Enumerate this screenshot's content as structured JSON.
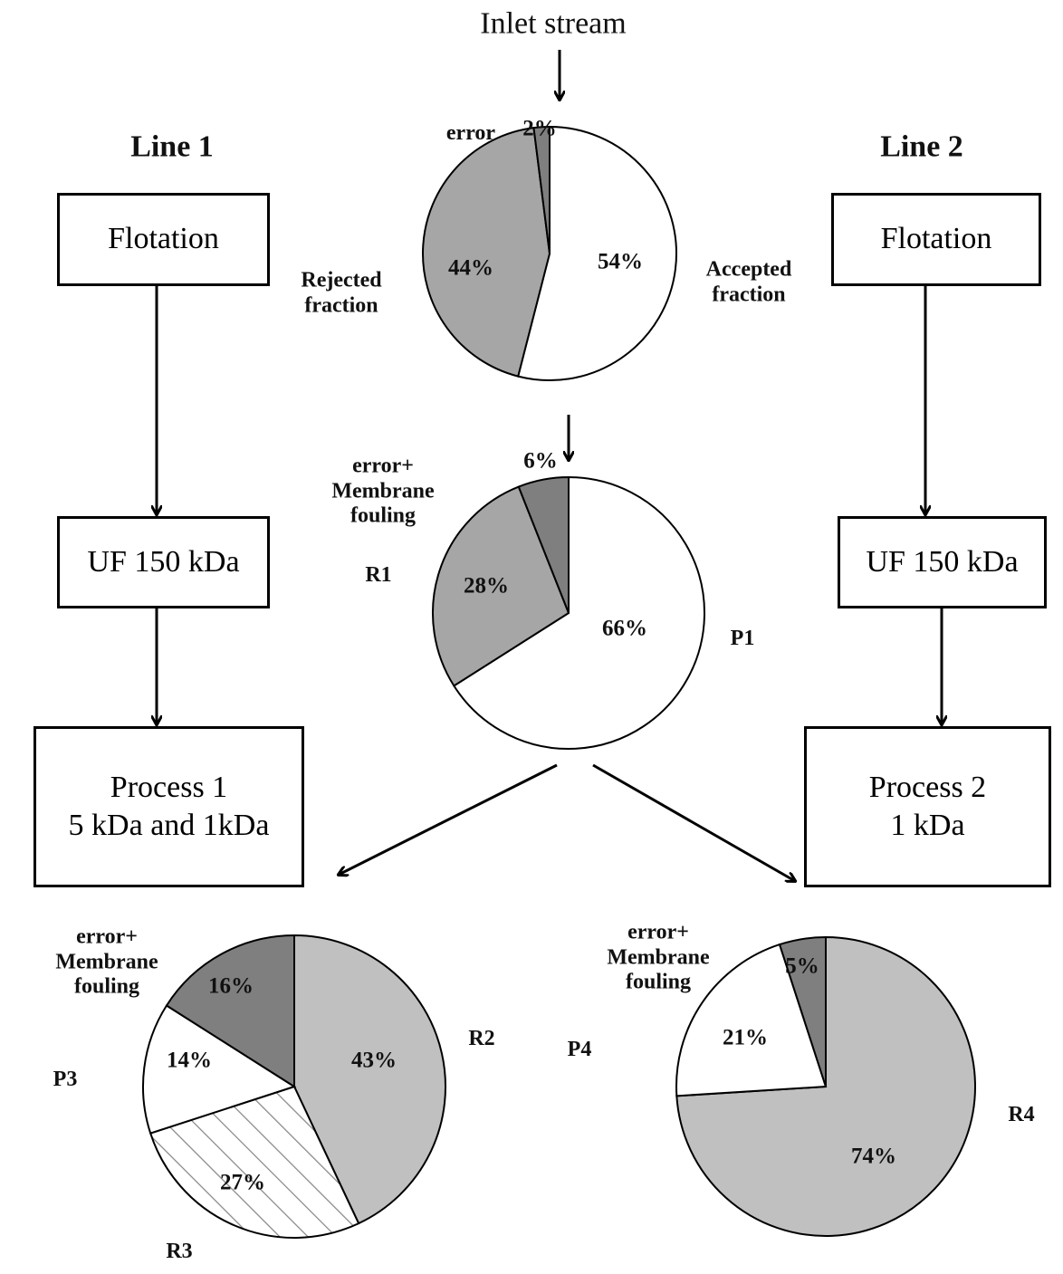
{
  "diagram": {
    "inlet": "Inlet stream",
    "lines": [
      {
        "title": "Line 1",
        "steps": [
          "Flotation",
          "UF 150 kDa",
          "Process 1\n5 kDa and 1kDa"
        ]
      },
      {
        "title": "Line 2",
        "steps": [
          "Flotation",
          "UF 150 kDa",
          "Process 2\n1 kDa"
        ]
      }
    ]
  },
  "chart_data": [
    {
      "type": "pie",
      "categories": [
        "Accepted\nfraction",
        "Rejected\nfraction",
        "error"
      ],
      "values": [
        54,
        44,
        2
      ],
      "value_labels": [
        "54%",
        "44%",
        "2%"
      ],
      "colors": [
        "#ffffff",
        "#a6a6a6",
        "#7f7f7f"
      ]
    },
    {
      "type": "pie",
      "categories": [
        "P1",
        "R1",
        "error+\nMembrane\nfouling"
      ],
      "values": [
        66,
        28,
        6
      ],
      "value_labels": [
        "66%",
        "28%",
        "6%"
      ],
      "colors": [
        "#ffffff",
        "#a6a6a6",
        "#7f7f7f"
      ]
    },
    {
      "type": "pie",
      "categories": [
        "R2",
        "R3",
        "P3",
        "error+\nMembrane\nfouling"
      ],
      "values": [
        43,
        27,
        14,
        16
      ],
      "value_labels": [
        "43%",
        "27%",
        "14%",
        "16%"
      ],
      "colors": [
        "#c0c0c0",
        "#ffffff",
        "#ffffff",
        "#7f7f7f"
      ],
      "patterns": [
        null,
        "hatch",
        null,
        null
      ]
    },
    {
      "type": "pie",
      "categories": [
        "R4",
        "P4",
        "error+\nMembrane\nfouling"
      ],
      "values": [
        74,
        21,
        5
      ],
      "value_labels": [
        "74%",
        "21%",
        "5%"
      ],
      "colors": [
        "#c0c0c0",
        "#ffffff",
        "#7f7f7f"
      ]
    }
  ]
}
